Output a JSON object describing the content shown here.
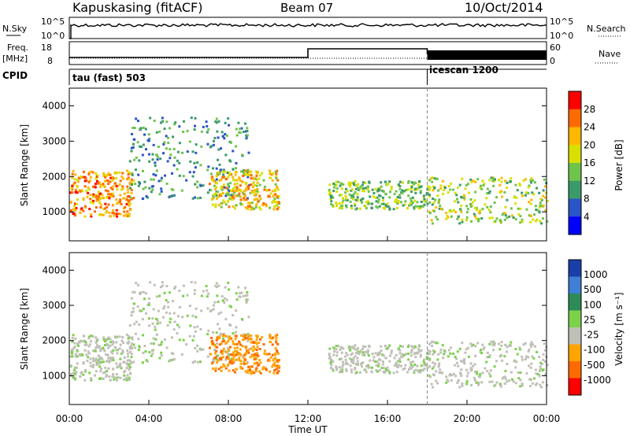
{
  "header": {
    "station": "Kapuskasing (fitACF)",
    "beam": "Beam 07",
    "date": "10/Oct/2014"
  },
  "panels": {
    "nsky": {
      "left_label": "N.Sky",
      "right_label": "N.Search",
      "ticks_left": [
        "10^5",
        "10^0"
      ],
      "ticks_right": [
        "10^5",
        "10^0"
      ]
    },
    "freq": {
      "left_label_1": "Freq.",
      "left_label_2": "[MHz]",
      "right_label": "Nave",
      "ticks_left": [
        "18",
        "8"
      ],
      "ticks_right": [
        "60",
        "0"
      ]
    },
    "cpid": {
      "label": "CPID",
      "mode_1": "tau (fast) 503",
      "mode_2": "icescan 1200"
    }
  },
  "power_colorbar": {
    "label": "Power [dB]",
    "ticks": [
      "28",
      "24",
      "20",
      "16",
      "12",
      "8",
      "4"
    ],
    "colors": [
      "#ff0000",
      "#ff6a00",
      "#ffb800",
      "#d8e000",
      "#6fc44a",
      "#3a9a6a",
      "#2a55c8",
      "#0000ff"
    ]
  },
  "velocity_colorbar": {
    "label": "Velocity [m s⁻¹]",
    "ticks": [
      "1000",
      "500",
      "100",
      "25",
      "-25",
      "-100",
      "-500",
      "-1000"
    ],
    "colors": [
      "#1a3fa8",
      "#3f7fd6",
      "#2e8b57",
      "#7bd14a",
      "#c0c0b8",
      "#ffa500",
      "#ff6a00",
      "#ff0000"
    ]
  },
  "chart_data": {
    "type": "heatmap",
    "xlabel": "Time UT",
    "x_ticks": [
      "00:00",
      "04:00",
      "08:00",
      "12:00",
      "16:00",
      "20:00",
      "00:00"
    ],
    "xlim_hours": [
      0,
      24
    ],
    "ylabel": "Slant Range [km]",
    "y_ticks": [
      4000,
      3000,
      2000,
      1000
    ],
    "ylim_km": [
      180,
      4500
    ],
    "mode_change_hour": 18,
    "freq_step_hours": [
      12,
      18
    ],
    "scatter_regions": [
      {
        "name": "early",
        "t": [
          0,
          3.2
        ],
        "r": [
          900,
          2200
        ],
        "power_db": 22,
        "velocity": 25
      },
      {
        "name": "arc",
        "t": [
          3,
          9
        ],
        "r": [
          1400,
          3700
        ],
        "power_db": 8,
        "velocity": 25
      },
      {
        "name": "mid",
        "t": [
          7,
          10.5
        ],
        "r": [
          1100,
          2200
        ],
        "power_db": 18,
        "velocity": -100
      },
      {
        "name": "afternoon",
        "t": [
          13,
          18
        ],
        "r": [
          1100,
          1900
        ],
        "power_db": 12,
        "velocity": 25
      },
      {
        "name": "late",
        "t": [
          18,
          24
        ],
        "r": [
          700,
          2000
        ],
        "power_db": 14,
        "velocity": 25
      }
    ]
  }
}
